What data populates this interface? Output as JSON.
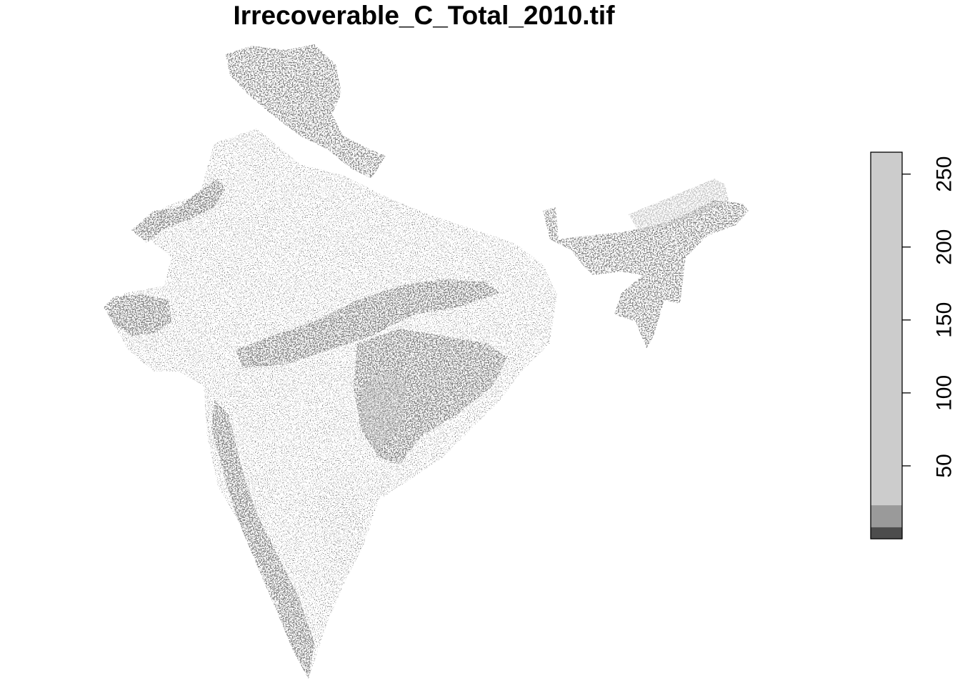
{
  "title": "Irrecoverable_C_Total_2010.tif",
  "legend": {
    "ticks": [
      {
        "label": "50",
        "value": 50
      },
      {
        "label": "100",
        "value": 100
      },
      {
        "label": "150",
        "value": 150
      },
      {
        "label": "200",
        "value": 200
      },
      {
        "label": "250",
        "value": 250
      }
    ],
    "range": [
      0,
      265
    ],
    "bins": [
      {
        "from": 0,
        "to": 8,
        "color": "#4d4d4d"
      },
      {
        "from": 8,
        "to": 23,
        "color": "#9a9a9a"
      },
      {
        "from": 23,
        "to": 265,
        "color": "#cccccc"
      }
    ]
  },
  "colors": {
    "high_density": "#3a3a3a",
    "medium_density": "#8c8c8c",
    "low_density": "#c8c8c8",
    "background": "#ffffff"
  }
}
